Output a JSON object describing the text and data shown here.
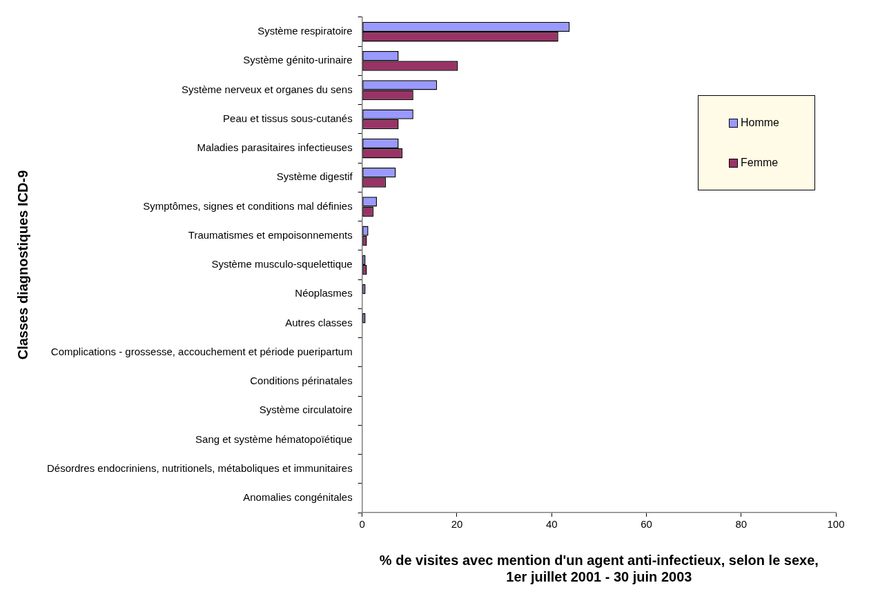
{
  "chart_data": {
    "type": "bar",
    "orientation": "horizontal",
    "categories": [
      "Système respiratoire",
      "Système génito-urinaire",
      "Système nerveux et organes du sens",
      "Peau et tissus sous-cutanés",
      "Maladies parasitaires infectieuses",
      "Système digestif",
      "Symptômes, signes et conditions mal définies",
      "Traumatismes et empoisonnements",
      "Système musculo-squelettique",
      "Néoplasmes",
      "Autres classes",
      "Complications - grossesse, accouchement et période pueripartum",
      "Conditions périnatales",
      "Système circulatoire",
      "Sang et système hématopoïétique",
      "Désordres endocriniens, nutritionels, métaboliques et immunitaires",
      "Anomalies congénitales"
    ],
    "series": [
      {
        "name": "Homme",
        "color": "#9999ff",
        "values": [
          43.8,
          7.7,
          15.8,
          10.8,
          7.7,
          7.1,
          3.1,
          1.3,
          0.7,
          0.7,
          0.7,
          0,
          0,
          0,
          0,
          0,
          0
        ]
      },
      {
        "name": "Femme",
        "color": "#993366",
        "values": [
          41.4,
          20.2,
          10.8,
          7.7,
          8.5,
          5.0,
          2.4,
          1.0,
          1.0,
          0,
          0,
          0,
          0,
          0,
          0,
          0,
          0
        ]
      }
    ],
    "xlim": [
      0,
      100
    ],
    "xticks": [
      0,
      20,
      40,
      60,
      80,
      100
    ],
    "xlabel": "% de visites avec mention d'un agent anti-infectieux, selon le sexe,\n1er juillet 2001 - 30 juin 2003",
    "ylabel": "Classes diagnostiques ICD-9",
    "grid": false,
    "legend": "right"
  }
}
